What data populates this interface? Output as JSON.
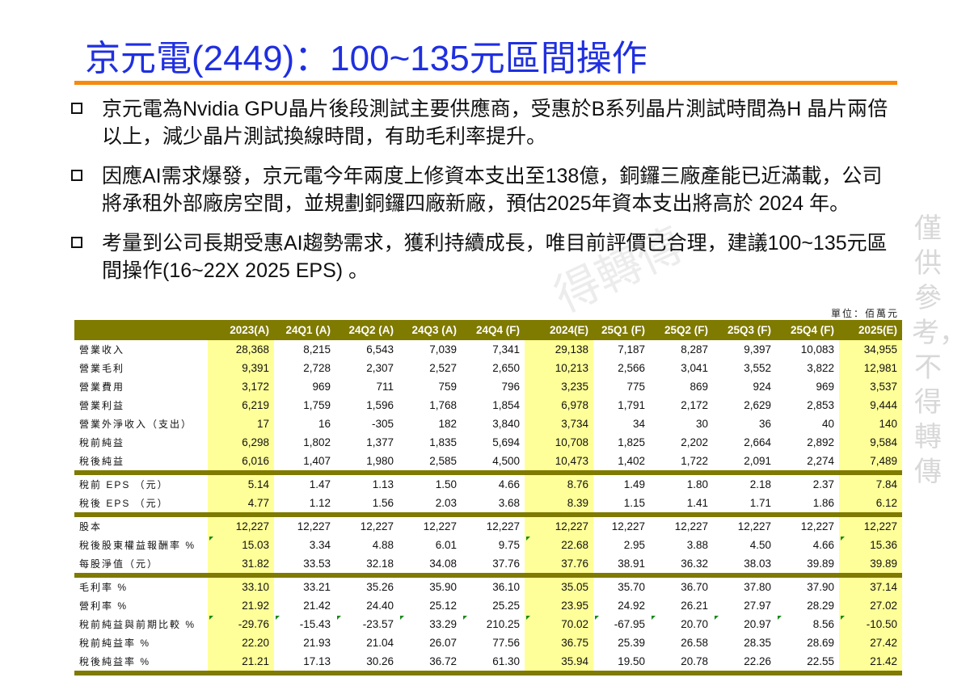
{
  "title": "京元電(2449)：100~135元區間操作",
  "bullets": [
    "京元電為Nvidia  GPU晶片後段測試主要供應商，受惠於B系列晶片測試時間為H 晶片兩倍以上，減少晶片測試換線時間，有助毛利率提升。",
    "因應AI需求爆發，京元電今年兩度上修資本支出至138億，銅鑼三廠產能已近滿載，公司將承租外部廠房空間，並規劃銅鑼四廠新廠，預估2025年資本支出將高於 2024 年。",
    "考量到公司長期受惠AI趨勢需求，獲利持續成長，唯目前評價已合理，建議100~135元區間操作(16~22X 2025 EPS) 。"
  ],
  "unit": "單位：佰萬元",
  "watermark_vertical": "僅供參考，不得轉傳",
  "watermark_diagonal": "得轉傳",
  "colors": {
    "title": "#1f2fe0",
    "rule": "#f68a0e",
    "header": "#7f7a00",
    "highlight": "#ffff99"
  },
  "table": {
    "columns": [
      "",
      "2023(A)",
      "24Q1 (A)",
      "24Q2 (A)",
      "24Q3 (A)",
      "24Q4 (F)",
      "2024(E)",
      "25Q1 (F)",
      "25Q2 (F)",
      "25Q3 (F)",
      "25Q4 (F)",
      "2025(E)"
    ],
    "highlight_columns": [
      "2023(A)",
      "2024(E)",
      "2025(E)"
    ],
    "groups": [
      [
        {
          "label": "營業收入",
          "values": [
            "28,368",
            "8,215",
            "6,543",
            "7,039",
            "7,341",
            "29,138",
            "7,187",
            "8,287",
            "9,397",
            "10,083",
            "34,955"
          ]
        },
        {
          "label": "營業毛利",
          "values": [
            "9,391",
            "2,728",
            "2,307",
            "2,527",
            "2,650",
            "10,213",
            "2,566",
            "3,041",
            "3,552",
            "3,822",
            "12,981"
          ]
        },
        {
          "label": "營業費用",
          "values": [
            "3,172",
            "969",
            "711",
            "759",
            "796",
            "3,235",
            "775",
            "869",
            "924",
            "969",
            "3,537"
          ]
        },
        {
          "label": "營業利益",
          "values": [
            "6,219",
            "1,759",
            "1,596",
            "1,768",
            "1,854",
            "6,978",
            "1,791",
            "2,172",
            "2,629",
            "2,853",
            "9,444"
          ]
        },
        {
          "label": "營業外淨收入（支出）",
          "values": [
            "17",
            "16",
            "-305",
            "182",
            "3,840",
            "3,734",
            "34",
            "30",
            "36",
            "40",
            "140"
          ]
        },
        {
          "label": "稅前純益",
          "values": [
            "6,298",
            "1,802",
            "1,377",
            "1,835",
            "5,694",
            "10,708",
            "1,825",
            "2,202",
            "2,664",
            "2,892",
            "9,584"
          ]
        },
        {
          "label": "稅後純益",
          "values": [
            "6,016",
            "1,407",
            "1,980",
            "2,585",
            "4,500",
            "10,473",
            "1,402",
            "1,722",
            "2,091",
            "2,274",
            "7,489"
          ]
        }
      ],
      [
        {
          "label": "稅前 EPS （元）",
          "values": [
            "5.14",
            "1.47",
            "1.13",
            "1.50",
            "4.66",
            "8.76",
            "1.49",
            "1.80",
            "2.18",
            "2.37",
            "7.84"
          ]
        },
        {
          "label": "稅後 EPS （元）",
          "values": [
            "4.77",
            "1.12",
            "1.56",
            "2.03",
            "3.68",
            "8.39",
            "1.15",
            "1.41",
            "1.71",
            "1.86",
            "6.12"
          ]
        }
      ],
      [
        {
          "label": "股本",
          "values": [
            "12,227",
            "12,227",
            "12,227",
            "12,227",
            "12,227",
            "12,227",
            "12,227",
            "12,227",
            "12,227",
            "12,227",
            "12,227"
          ]
        },
        {
          "label": "稅後股東權益報酬率 %",
          "values": [
            "15.03",
            "3.34",
            "4.88",
            "6.01",
            "9.75",
            "22.68",
            "2.95",
            "3.88",
            "4.50",
            "4.66",
            "15.36"
          ]
        },
        {
          "label": "每股淨值（元）",
          "values": [
            "31.82",
            "33.53",
            "32.18",
            "34.08",
            "37.76",
            "37.76",
            "38.91",
            "36.32",
            "38.03",
            "39.89",
            "39.89"
          ]
        }
      ],
      [
        {
          "label": "毛利率 %",
          "values": [
            "33.10",
            "33.21",
            "35.26",
            "35.90",
            "36.10",
            "35.05",
            "35.70",
            "36.70",
            "37.80",
            "37.90",
            "37.14"
          ]
        },
        {
          "label": "營利率 %",
          "values": [
            "21.92",
            "21.42",
            "24.40",
            "25.12",
            "25.25",
            "23.95",
            "24.92",
            "26.21",
            "27.97",
            "28.29",
            "27.02"
          ]
        },
        {
          "label": "稅前純益與前期比較 %",
          "values": [
            "-29.76",
            "-15.43",
            "-23.57",
            "33.29",
            "210.25",
            "70.02",
            "-67.95",
            "20.70",
            "20.97",
            "8.56",
            "-10.50"
          ]
        },
        {
          "label": "稅前純益率 %",
          "values": [
            "22.20",
            "21.93",
            "21.04",
            "26.07",
            "77.56",
            "36.75",
            "25.39",
            "26.58",
            "28.35",
            "28.69",
            "27.42"
          ]
        },
        {
          "label": "稅後純益率 %",
          "values": [
            "21.21",
            "17.13",
            "30.26",
            "36.72",
            "61.30",
            "35.94",
            "19.50",
            "20.78",
            "22.26",
            "22.55",
            "21.42"
          ]
        }
      ]
    ]
  }
}
